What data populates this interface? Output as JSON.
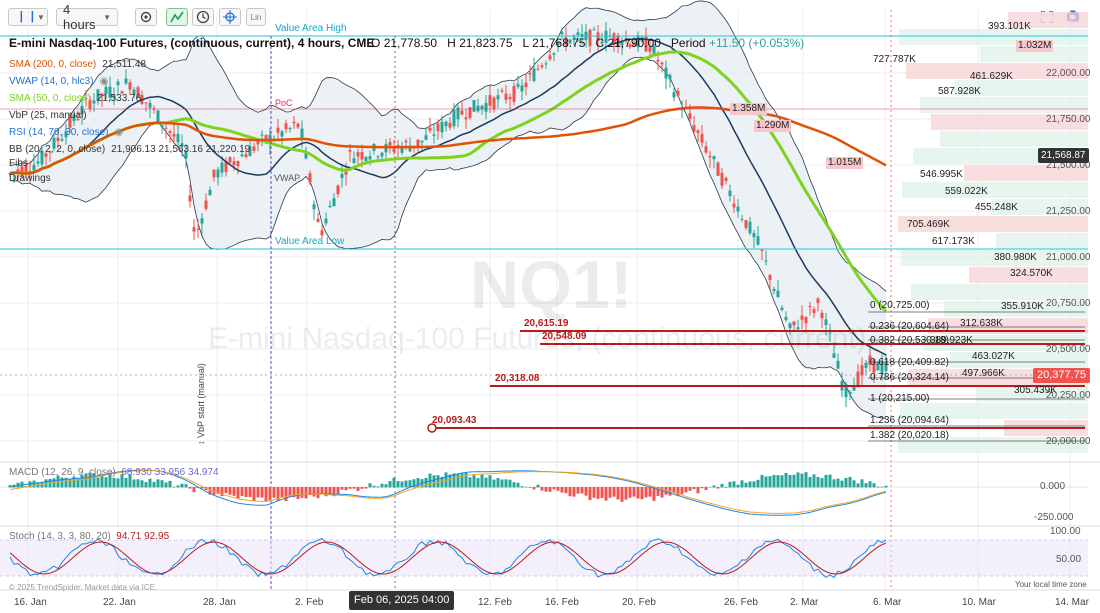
{
  "toolbar": {
    "chart_type_icon": "candlestick-icon",
    "interval": "4 hours",
    "symbol_title": "E-mini Nasdaq-100 Futures, (continuous, current), 4 hours, CME",
    "ohlc": {
      "o_label": "O",
      "o": "21,778.50",
      "h_label": "H",
      "h": "21,823.75",
      "l_label": "L",
      "l": "21,768.75",
      "c_label": "C",
      "c": "21,790.00",
      "period_label": "Period",
      "change": "+11.50 (+0.053%)"
    },
    "tools": [
      "settings-icon",
      "trend-icon",
      "clock-icon",
      "crosshair-icon",
      "lin-toggle"
    ],
    "lin_label": "Lin"
  },
  "indicators": [
    {
      "label": "SMA (200, 0, close)",
      "value": "21,511.48",
      "color": "#e05206"
    },
    {
      "label": "VWAP (14, 0, hlc3)",
      "value": "",
      "color": "#1e6fd9"
    },
    {
      "label": "SMA (50, 0, close)",
      "value": "21,533.76",
      "color": "#7ed321"
    },
    {
      "label": "VbP (25, manual)",
      "value": "",
      "color": "#333333"
    },
    {
      "label": "RSI (14, 70, 30, close)",
      "value": "",
      "color": "#1e6fd9"
    },
    {
      "label": "BB (20, 2, 2, 0, close)",
      "value": "21,906.13  21,563.16  21,220.19",
      "color": "#333333"
    },
    {
      "label": "Fibs",
      "value": "",
      "color": "#333333"
    },
    {
      "label": "Drawings",
      "value": "",
      "color": "#333333"
    }
  ],
  "overlay_labels": {
    "value_area_high": "Value Area High",
    "value_area_low": "Value Area Low",
    "poc": "PoC",
    "vwap": "VWAP",
    "vbp_start": "↕ VbP start (manual)"
  },
  "watermark": {
    "symbol": "NQ1!",
    "name": "E-mini Nasdaq-100 Futures, (continuous, current)"
  },
  "price_axis": {
    "ticks": [
      "22,000.00",
      "21,750.00",
      "21,500.00",
      "21,250.00",
      "21,000.00",
      "20,750.00",
      "20,500.00",
      "20,250.00",
      "20,000.00"
    ],
    "current_price": "20,377.75",
    "crosshair_price": "21,568.87"
  },
  "volume_profile": [
    {
      "label": "393.101K"
    },
    {
      "label": "1.032M"
    },
    {
      "label": "727.787K"
    },
    {
      "label": "461.629K"
    },
    {
      "label": "587.928K"
    },
    {
      "label": "1.358M"
    },
    {
      "label": "1.290M"
    },
    {
      "label": "1.015M"
    },
    {
      "label": "546.995K"
    },
    {
      "label": "559.022K"
    },
    {
      "label": "455.248K"
    },
    {
      "label": "705.469K"
    },
    {
      "label": "617.173K"
    },
    {
      "label": "380.980K"
    },
    {
      "label": "324.570K"
    },
    {
      "label": "355.910K"
    },
    {
      "label": "312.638K"
    },
    {
      "label": "389.923K"
    },
    {
      "label": "463.027K"
    },
    {
      "label": "497.966K"
    },
    {
      "label": "305.439K"
    }
  ],
  "levels": [
    {
      "label": "20,615.19"
    },
    {
      "label": "20,548.09"
    },
    {
      "label": "20,318.08"
    },
    {
      "label": "20,093.43"
    }
  ],
  "fib_levels": [
    {
      "label": "0 (20,725.00)"
    },
    {
      "label": "0.236 (20,604.64)"
    },
    {
      "label": "0.382 (20,530.18)"
    },
    {
      "label": "0.618 (20,409.82)"
    },
    {
      "label": "0.786 (20,324.14)"
    },
    {
      "label": "1 (20,215.00)"
    },
    {
      "label": "1.236 (20,094.64)"
    },
    {
      "label": "1.382 (20,020.18)"
    }
  ],
  "macd": {
    "label": "MACD (12, 26, 9, close)",
    "values": "68.930  33.956  34.974",
    "ticks": [
      "0.000",
      "-250.000"
    ]
  },
  "stoch": {
    "label": "Stoch (14, 3, 3, 80, 20)",
    "values": "94.71  92.95",
    "ticks": [
      "100.00",
      "50.00"
    ]
  },
  "time_axis": {
    "ticks": [
      "16. Jan",
      "22. Jan",
      "28. Jan",
      "2. Feb",
      "12. Feb",
      "16. Feb",
      "20. Feb",
      "26. Feb",
      "2. Mar",
      "6. Mar",
      "10. Mar",
      "14. Mar"
    ],
    "crosshair": "Feb 06, 2025 04:00"
  },
  "footer": {
    "copyright": "© 2025 TrendSpider. Market data via ICE.",
    "local_time": "Your local time zone"
  },
  "colors": {
    "sma200": "#e05206",
    "sma50": "#7ed321",
    "vwap": "#1e3a5f",
    "up": "#26a69a",
    "down": "#ef5350",
    "level": "#b71c1c",
    "bb_fill": "#e6edf3",
    "value_area": "#26c6da",
    "poc": "#e91e63"
  }
}
